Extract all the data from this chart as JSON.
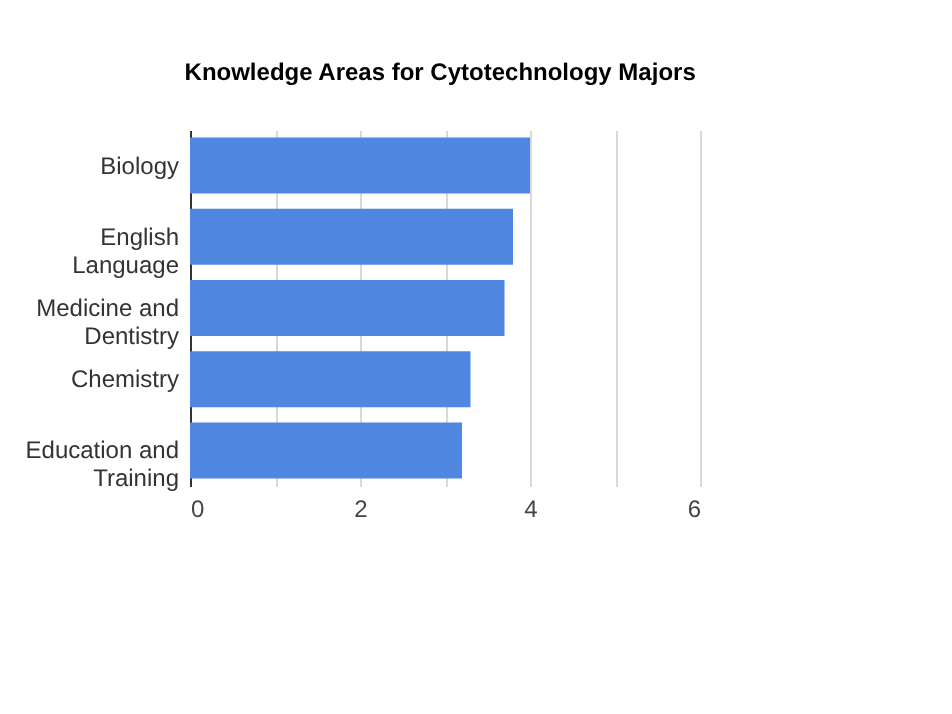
{
  "chart_data": {
    "type": "bar",
    "orientation": "horizontal",
    "title": "Knowledge Areas for Cytotechnology Majors",
    "categories": [
      "Biology",
      "English Language",
      "Medicine and Dentistry",
      "Chemistry",
      "Education and Training"
    ],
    "values": [
      4.0,
      3.8,
      3.7,
      3.3,
      3.2
    ],
    "color": "#4f86e0",
    "xlim": [
      0,
      6
    ],
    "xticks": [
      0,
      {
        "value": 1,
        "label": null
      },
      2,
      {
        "value": 3,
        "label": null
      },
      4,
      {
        "value": 5,
        "label": null
      },
      6
    ],
    "grid": "x"
  }
}
